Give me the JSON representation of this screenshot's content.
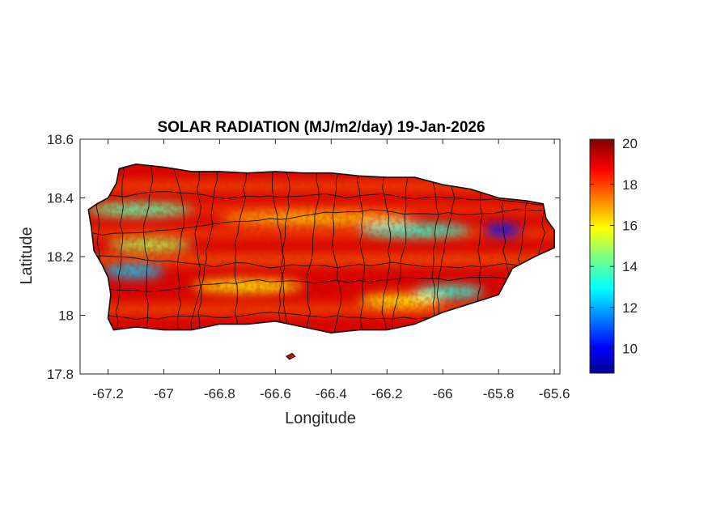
{
  "chart_data": {
    "type": "heatmap",
    "title": "SOLAR RADIATION (MJ/m2/day) 19-Jan-2026",
    "xlabel": "Longitude",
    "ylabel": "Latitude",
    "xlim": [
      -67.3,
      -65.58
    ],
    "ylim": [
      17.8,
      18.6
    ],
    "xticks": [
      "-67.2",
      "-67",
      "-66.8",
      "-66.6",
      "-66.4",
      "-66.2",
      "-66",
      "-65.8",
      "-65.6"
    ],
    "xtick_values": [
      -67.2,
      -67.0,
      -66.8,
      -66.6,
      -66.4,
      -66.2,
      -66.0,
      -65.8,
      -65.6
    ],
    "yticks": [
      "18.6",
      "18.4",
      "18.2",
      "18",
      "17.8"
    ],
    "ytick_values": [
      18.6,
      18.4,
      18.2,
      18.0,
      17.8
    ],
    "colorbar": {
      "ticks": [
        "20",
        "18",
        "16",
        "14",
        "12",
        "10"
      ],
      "tick_values": [
        20,
        18,
        16,
        14,
        12,
        10
      ],
      "range": [
        8.8,
        20.2
      ],
      "colormap": "jet"
    },
    "island_outline": [
      [
        -67.27,
        18.36
      ],
      [
        -67.24,
        18.38
      ],
      [
        -67.2,
        18.4
      ],
      [
        -67.17,
        18.45
      ],
      [
        -67.16,
        18.5
      ],
      [
        -67.1,
        18.515
      ],
      [
        -67.0,
        18.505
      ],
      [
        -66.9,
        18.49
      ],
      [
        -66.8,
        18.49
      ],
      [
        -66.7,
        18.485
      ],
      [
        -66.6,
        18.49
      ],
      [
        -66.5,
        18.485
      ],
      [
        -66.4,
        18.485
      ],
      [
        -66.3,
        18.475
      ],
      [
        -66.2,
        18.47
      ],
      [
        -66.1,
        18.47
      ],
      [
        -66.0,
        18.445
      ],
      [
        -65.9,
        18.43
      ],
      [
        -65.8,
        18.4
      ],
      [
        -65.7,
        18.39
      ],
      [
        -65.64,
        18.38
      ],
      [
        -65.63,
        18.33
      ],
      [
        -65.6,
        18.29
      ],
      [
        -65.6,
        18.23
      ],
      [
        -65.67,
        18.2
      ],
      [
        -65.75,
        18.16
      ],
      [
        -65.8,
        18.07
      ],
      [
        -65.9,
        18.04
      ],
      [
        -66.0,
        18.01
      ],
      [
        -66.1,
        17.97
      ],
      [
        -66.2,
        17.95
      ],
      [
        -66.3,
        17.95
      ],
      [
        -66.4,
        17.94
      ],
      [
        -66.5,
        17.96
      ],
      [
        -66.6,
        17.98
      ],
      [
        -66.7,
        17.97
      ],
      [
        -66.8,
        17.97
      ],
      [
        -66.9,
        17.95
      ],
      [
        -67.0,
        17.95
      ],
      [
        -67.1,
        17.96
      ],
      [
        -67.18,
        17.95
      ],
      [
        -67.2,
        17.99
      ],
      [
        -67.19,
        18.07
      ],
      [
        -67.2,
        18.13
      ],
      [
        -67.22,
        18.17
      ],
      [
        -67.25,
        18.22
      ],
      [
        -67.26,
        18.3
      ],
      [
        -67.27,
        18.36
      ]
    ],
    "small_islands": [
      [
        [
          -66.56,
          17.86
        ],
        [
          -66.54,
          17.87
        ],
        [
          -66.53,
          17.86
        ],
        [
          -66.55,
          17.85
        ],
        [
          -66.56,
          17.86
        ]
      ]
    ],
    "low_radiation_bands": [
      {
        "lon": [
          -67.27,
          -66.9
        ],
        "lat": 18.36,
        "value": 14
      },
      {
        "lon": [
          -67.2,
          -66.9
        ],
        "lat": 18.24,
        "value": 15
      },
      {
        "lon": [
          -67.22,
          -67.0
        ],
        "lat": 18.15,
        "value": 12.5
      },
      {
        "lon": [
          -66.9,
          -66.5
        ],
        "lat": 18.1,
        "value": 16
      },
      {
        "lon": [
          -66.3,
          -65.9
        ],
        "lat": 18.29,
        "value": 13.5
      },
      {
        "lon": [
          -66.1,
          -65.85
        ],
        "lat": 18.08,
        "value": 13.5
      },
      {
        "lon": [
          -65.85,
          -65.72
        ],
        "lat": 18.29,
        "value": 10.5
      },
      {
        "lon": [
          -66.8,
          -66.1
        ],
        "lat": 18.33,
        "value": 16.5
      },
      {
        "lon": [
          -66.3,
          -66.0
        ],
        "lat": 18.05,
        "value": 16
      }
    ],
    "grid": false
  }
}
